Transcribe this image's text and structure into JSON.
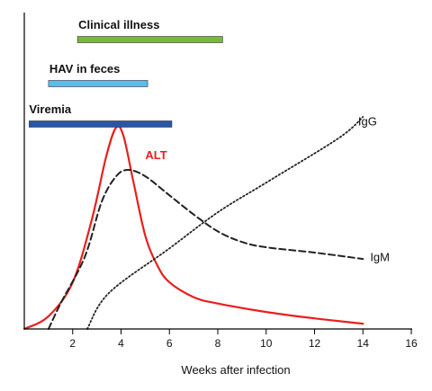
{
  "chart_data": {
    "type": "line",
    "title": "",
    "xlabel": "Weeks after infection",
    "ylabel": "",
    "xlim": [
      0,
      16
    ],
    "ylim": [
      0,
      100
    ],
    "grid": false,
    "x_ticks": [
      2,
      4,
      6,
      8,
      10,
      12,
      14,
      16
    ],
    "bars": [
      {
        "name": "Clinical illness",
        "start": 2.2,
        "end": 8.2,
        "color": "#7bb83a"
      },
      {
        "name": "HAV in feces",
        "start": 1.0,
        "end": 5.1,
        "color": "#5bbcf0"
      },
      {
        "name": "Viremia",
        "start": 0.2,
        "end": 6.1,
        "color": "#2a56a8"
      }
    ],
    "series": [
      {
        "name": "ALT",
        "color": "#e8201c",
        "style": "solid",
        "points": [
          [
            0,
            0
          ],
          [
            1,
            6
          ],
          [
            2,
            22
          ],
          [
            2.8,
            52
          ],
          [
            3.4,
            82
          ],
          [
            3.8,
            95
          ],
          [
            4.1,
            91
          ],
          [
            4.5,
            70
          ],
          [
            5.0,
            44
          ],
          [
            5.5,
            30
          ],
          [
            6,
            22
          ],
          [
            7,
            15
          ],
          [
            8,
            12
          ],
          [
            10,
            8
          ],
          [
            12,
            5
          ],
          [
            14,
            2.5
          ]
        ]
      },
      {
        "name": "IgM",
        "color": "#222222",
        "style": "dashed",
        "points": [
          [
            1,
            0
          ],
          [
            1.5,
            12
          ],
          [
            2.5,
            34
          ],
          [
            3.2,
            60
          ],
          [
            3.8,
            72
          ],
          [
            4.3,
            75
          ],
          [
            5,
            72
          ],
          [
            6,
            63
          ],
          [
            7,
            54
          ],
          [
            8,
            46
          ],
          [
            9,
            41
          ],
          [
            10,
            38.5
          ],
          [
            12,
            36
          ],
          [
            14,
            33
          ]
        ]
      },
      {
        "name": "IgG",
        "color": "#222222",
        "style": "dotted",
        "points": [
          [
            2.6,
            0
          ],
          [
            3.5,
            17
          ],
          [
            6,
            38
          ],
          [
            8,
            55
          ],
          [
            10,
            69
          ],
          [
            13,
            90
          ],
          [
            14,
            100
          ]
        ]
      }
    ]
  }
}
